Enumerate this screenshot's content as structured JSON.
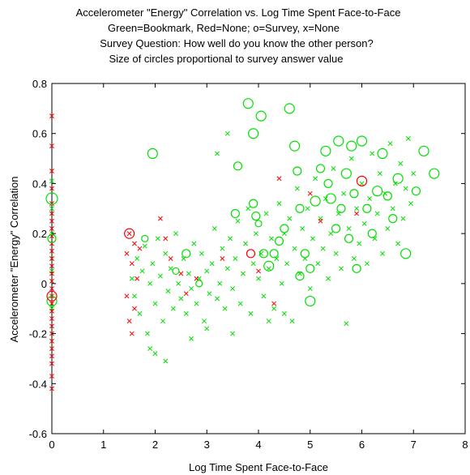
{
  "chart_data": {
    "type": "scatter",
    "title_lines": [
      "Accelerometer \"Energy\" Correlation vs. Log Time Spent Face-to-Face",
      "Green=Bookmark, Red=None; o=Survey, x=None",
      "Survey Question: How well do you know the other person?",
      "Size of circles proportional to survey answer value"
    ],
    "xlabel": "Log Time Spent Face-to-Face",
    "ylabel": "Accelerometer \"Energy\" Correlation",
    "xlim": [
      0,
      8
    ],
    "ylim": [
      -0.6,
      0.8
    ],
    "xticks": [
      "0",
      "1",
      "2",
      "3",
      "4",
      "5",
      "6",
      "7",
      "8"
    ],
    "yticks": [
      "-0.6",
      "-0.4",
      "-0.2",
      "0",
      "0.2",
      "0.4",
      "0.6",
      "0.8"
    ],
    "grid": false,
    "colors": {
      "bookmark": "#00e000",
      "none": "#ff0000"
    },
    "series": [
      {
        "color": "#00e000",
        "marker": "x",
        "points": [
          [
            1.55,
            0.02
          ],
          [
            1.6,
            -0.05
          ],
          [
            1.65,
            0.1
          ],
          [
            1.7,
            -0.12
          ],
          [
            1.75,
            0.05
          ],
          [
            1.8,
            0.15
          ],
          [
            1.85,
            -0.2
          ],
          [
            1.9,
            0.0
          ],
          [
            1.95,
            0.08
          ],
          [
            2.0,
            -0.08
          ],
          [
            2.05,
            0.18
          ],
          [
            2.1,
            0.03
          ],
          [
            2.15,
            -0.15
          ],
          [
            2.2,
            0.12
          ],
          [
            2.25,
            -0.03
          ],
          [
            2.3,
            0.06
          ],
          [
            2.35,
            -0.1
          ],
          [
            2.4,
            0.2
          ],
          [
            2.45,
            0.0
          ],
          [
            2.5,
            -0.06
          ],
          [
            2.55,
            0.1
          ],
          [
            2.6,
            -0.12
          ],
          [
            2.65,
            0.04
          ],
          [
            2.7,
            -0.02
          ],
          [
            2.75,
            0.16
          ],
          [
            2.8,
            -0.08
          ],
          [
            2.85,
            0.02
          ],
          [
            2.9,
            0.12
          ],
          [
            2.95,
            -0.15
          ],
          [
            3.0,
            0.05
          ],
          [
            3.05,
            -0.04
          ],
          [
            3.1,
            0.08
          ],
          [
            3.15,
            0.22
          ],
          [
            3.2,
            -0.06
          ],
          [
            3.25,
            0.0
          ],
          [
            3.3,
            0.14
          ],
          [
            3.35,
            -0.1
          ],
          [
            3.4,
            0.06
          ],
          [
            3.45,
            0.18
          ],
          [
            3.5,
            -0.02
          ],
          [
            3.55,
            0.1
          ],
          [
            3.6,
            0.25
          ],
          [
            3.65,
            -0.08
          ],
          [
            3.7,
            0.04
          ],
          [
            3.75,
            0.16
          ],
          [
            3.8,
            0.3
          ],
          [
            3.85,
            -0.12
          ],
          [
            3.9,
            0.08
          ],
          [
            3.95,
            0.2
          ],
          [
            4.0,
            0.02
          ],
          [
            4.05,
            0.12
          ],
          [
            4.1,
            -0.05
          ],
          [
            4.15,
            0.28
          ],
          [
            4.2,
            0.06
          ],
          [
            4.25,
            0.18
          ],
          [
            4.3,
            -0.1
          ],
          [
            4.35,
            0.1
          ],
          [
            4.4,
            0.32
          ],
          [
            4.45,
            0.0
          ],
          [
            4.5,
            0.2
          ],
          [
            4.55,
            0.08
          ],
          [
            4.6,
            0.26
          ],
          [
            4.65,
            -0.15
          ],
          [
            4.7,
            0.14
          ],
          [
            4.75,
            0.38
          ],
          [
            4.8,
            0.04
          ],
          [
            4.85,
            0.22
          ],
          [
            4.9,
            0.1
          ],
          [
            4.95,
            0.3
          ],
          [
            5.0,
            -0.02
          ],
          [
            5.05,
            0.18
          ],
          [
            5.1,
            0.42
          ],
          [
            5.15,
            0.08
          ],
          [
            5.2,
            0.26
          ],
          [
            5.25,
            0.14
          ],
          [
            5.3,
            0.34
          ],
          [
            5.35,
            0.02
          ],
          [
            5.4,
            0.2
          ],
          [
            5.45,
            0.46
          ],
          [
            5.5,
            0.12
          ],
          [
            5.55,
            0.28
          ],
          [
            5.6,
            0.06
          ],
          [
            5.65,
            0.36
          ],
          [
            5.7,
            -0.16
          ],
          [
            5.75,
            0.22
          ],
          [
            5.8,
            0.5
          ],
          [
            5.85,
            0.1
          ],
          [
            5.9,
            0.3
          ],
          [
            5.95,
            0.16
          ],
          [
            6.0,
            0.4
          ],
          [
            6.05,
            0.24
          ],
          [
            6.1,
            0.08
          ],
          [
            6.15,
            0.34
          ],
          [
            6.2,
            0.52
          ],
          [
            6.25,
            0.18
          ],
          [
            6.3,
            0.28
          ],
          [
            6.35,
            0.44
          ],
          [
            6.4,
            0.12
          ],
          [
            6.45,
            0.36
          ],
          [
            6.5,
            0.22
          ],
          [
            6.55,
            0.56
          ],
          [
            6.6,
            0.3
          ],
          [
            6.65,
            0.4
          ],
          [
            6.7,
            0.16
          ],
          [
            6.75,
            0.48
          ],
          [
            6.8,
            0.26
          ],
          [
            6.85,
            0.38
          ],
          [
            6.9,
            0.58
          ],
          [
            6.95,
            0.32
          ],
          [
            7.0,
            0.44
          ],
          [
            3.4,
            0.6
          ],
          [
            3.2,
            0.52
          ],
          [
            2.0,
            -0.28
          ],
          [
            2.2,
            -0.31
          ],
          [
            1.9,
            -0.26
          ],
          [
            2.7,
            -0.22
          ],
          [
            4.2,
            -0.15
          ],
          [
            4.5,
            -0.12
          ],
          [
            3.0,
            -0.18
          ],
          [
            3.5,
            -0.2
          ],
          [
            0.0,
            0.41
          ],
          [
            0.0,
            0.3
          ],
          [
            0.0,
            0.2
          ],
          [
            0.0,
            0.1
          ],
          [
            0.0,
            -0.1
          ],
          [
            0.0,
            0.05
          ]
        ]
      },
      {
        "color": "#ff0000",
        "marker": "x",
        "points": [
          [
            0.0,
            0.67
          ],
          [
            0.0,
            0.55
          ],
          [
            0.0,
            0.45
          ],
          [
            0.0,
            0.38
          ],
          [
            0.0,
            0.32
          ],
          [
            0.0,
            0.28
          ],
          [
            0.0,
            0.25
          ],
          [
            0.0,
            0.22
          ],
          [
            0.0,
            0.19
          ],
          [
            0.0,
            0.16
          ],
          [
            0.0,
            0.13
          ],
          [
            0.0,
            0.1
          ],
          [
            0.0,
            0.07
          ],
          [
            0.0,
            0.04
          ],
          [
            0.0,
            0.01
          ],
          [
            0.0,
            -0.02
          ],
          [
            0.0,
            -0.05
          ],
          [
            0.0,
            -0.08
          ],
          [
            0.0,
            -0.11
          ],
          [
            0.0,
            -0.14
          ],
          [
            0.0,
            -0.17
          ],
          [
            0.0,
            -0.2
          ],
          [
            0.0,
            -0.23
          ],
          [
            0.0,
            -0.26
          ],
          [
            0.0,
            -0.29
          ],
          [
            0.0,
            -0.32
          ],
          [
            0.0,
            -0.37
          ],
          [
            0.0,
            -0.42
          ],
          [
            1.45,
            0.12
          ],
          [
            1.45,
            -0.05
          ],
          [
            1.5,
            0.2
          ],
          [
            1.5,
            -0.15
          ],
          [
            1.55,
            0.08
          ],
          [
            1.55,
            -0.2
          ],
          [
            1.6,
            0.16
          ],
          [
            1.6,
            -0.1
          ],
          [
            1.65,
            0.02
          ],
          [
            1.7,
            0.14
          ],
          [
            2.1,
            0.26
          ],
          [
            2.2,
            0.18
          ],
          [
            2.3,
            0.1
          ],
          [
            2.5,
            0.04
          ],
          [
            2.6,
            -0.04
          ],
          [
            2.8,
            0.02
          ],
          [
            3.3,
            0.1
          ],
          [
            4.0,
            0.05
          ],
          [
            4.3,
            -0.08
          ],
          [
            4.4,
            0.42
          ],
          [
            5.0,
            0.36
          ],
          [
            5.2,
            0.25
          ],
          [
            5.9,
            0.28
          ]
        ]
      },
      {
        "color": "#00e000",
        "marker": "o",
        "points": [
          [
            0.0,
            0.34,
            7
          ],
          [
            0.0,
            0.18,
            5
          ],
          [
            0.0,
            -0.07,
            6
          ],
          [
            1.95,
            0.52,
            6
          ],
          [
            1.8,
            0.18,
            4
          ],
          [
            2.4,
            0.05,
            4
          ],
          [
            2.6,
            0.12,
            5
          ],
          [
            2.85,
            0.0,
            4
          ],
          [
            3.55,
            0.28,
            5
          ],
          [
            3.6,
            0.47,
            5
          ],
          [
            3.8,
            0.72,
            6
          ],
          [
            3.9,
            0.6,
            6
          ],
          [
            3.95,
            0.27,
            5
          ],
          [
            4.0,
            0.24,
            4
          ],
          [
            4.05,
            0.67,
            6
          ],
          [
            4.1,
            0.12,
            5
          ],
          [
            4.2,
            0.07,
            6
          ],
          [
            4.3,
            0.12,
            5
          ],
          [
            4.4,
            0.17,
            5
          ],
          [
            4.5,
            0.22,
            5
          ],
          [
            4.6,
            0.7,
            6
          ],
          [
            4.7,
            0.55,
            6
          ],
          [
            4.75,
            0.45,
            5
          ],
          [
            4.8,
            0.3,
            5
          ],
          [
            4.9,
            0.12,
            5
          ],
          [
            5.0,
            0.06,
            5
          ],
          [
            5.1,
            0.33,
            6
          ],
          [
            5.2,
            0.46,
            5
          ],
          [
            5.3,
            0.53,
            6
          ],
          [
            5.35,
            0.4,
            5
          ],
          [
            5.4,
            0.34,
            6
          ],
          [
            5.5,
            0.22,
            5
          ],
          [
            5.55,
            0.57,
            6
          ],
          [
            5.6,
            0.3,
            5
          ],
          [
            5.7,
            0.44,
            6
          ],
          [
            5.75,
            0.18,
            5
          ],
          [
            5.8,
            0.55,
            6
          ],
          [
            5.85,
            0.36,
            5
          ],
          [
            5.9,
            0.06,
            5
          ],
          [
            6.0,
            0.57,
            6
          ],
          [
            6.1,
            0.3,
            5
          ],
          [
            6.2,
            0.2,
            5
          ],
          [
            6.3,
            0.37,
            6
          ],
          [
            6.4,
            0.52,
            6
          ],
          [
            6.5,
            0.35,
            5
          ],
          [
            6.6,
            0.26,
            5
          ],
          [
            6.7,
            0.42,
            6
          ],
          [
            6.85,
            0.12,
            6
          ],
          [
            7.05,
            0.37,
            5
          ],
          [
            7.2,
            0.53,
            6
          ],
          [
            7.4,
            0.44,
            6
          ],
          [
            5.0,
            -0.07,
            6
          ],
          [
            4.8,
            0.03,
            5
          ],
          [
            3.9,
            0.32,
            5
          ]
        ]
      },
      {
        "color": "#ff0000",
        "marker": "o",
        "points": [
          [
            0.0,
            -0.05,
            6
          ],
          [
            1.5,
            0.2,
            6
          ],
          [
            3.85,
            0.12,
            5
          ],
          [
            6.0,
            0.41,
            6
          ]
        ]
      }
    ]
  }
}
